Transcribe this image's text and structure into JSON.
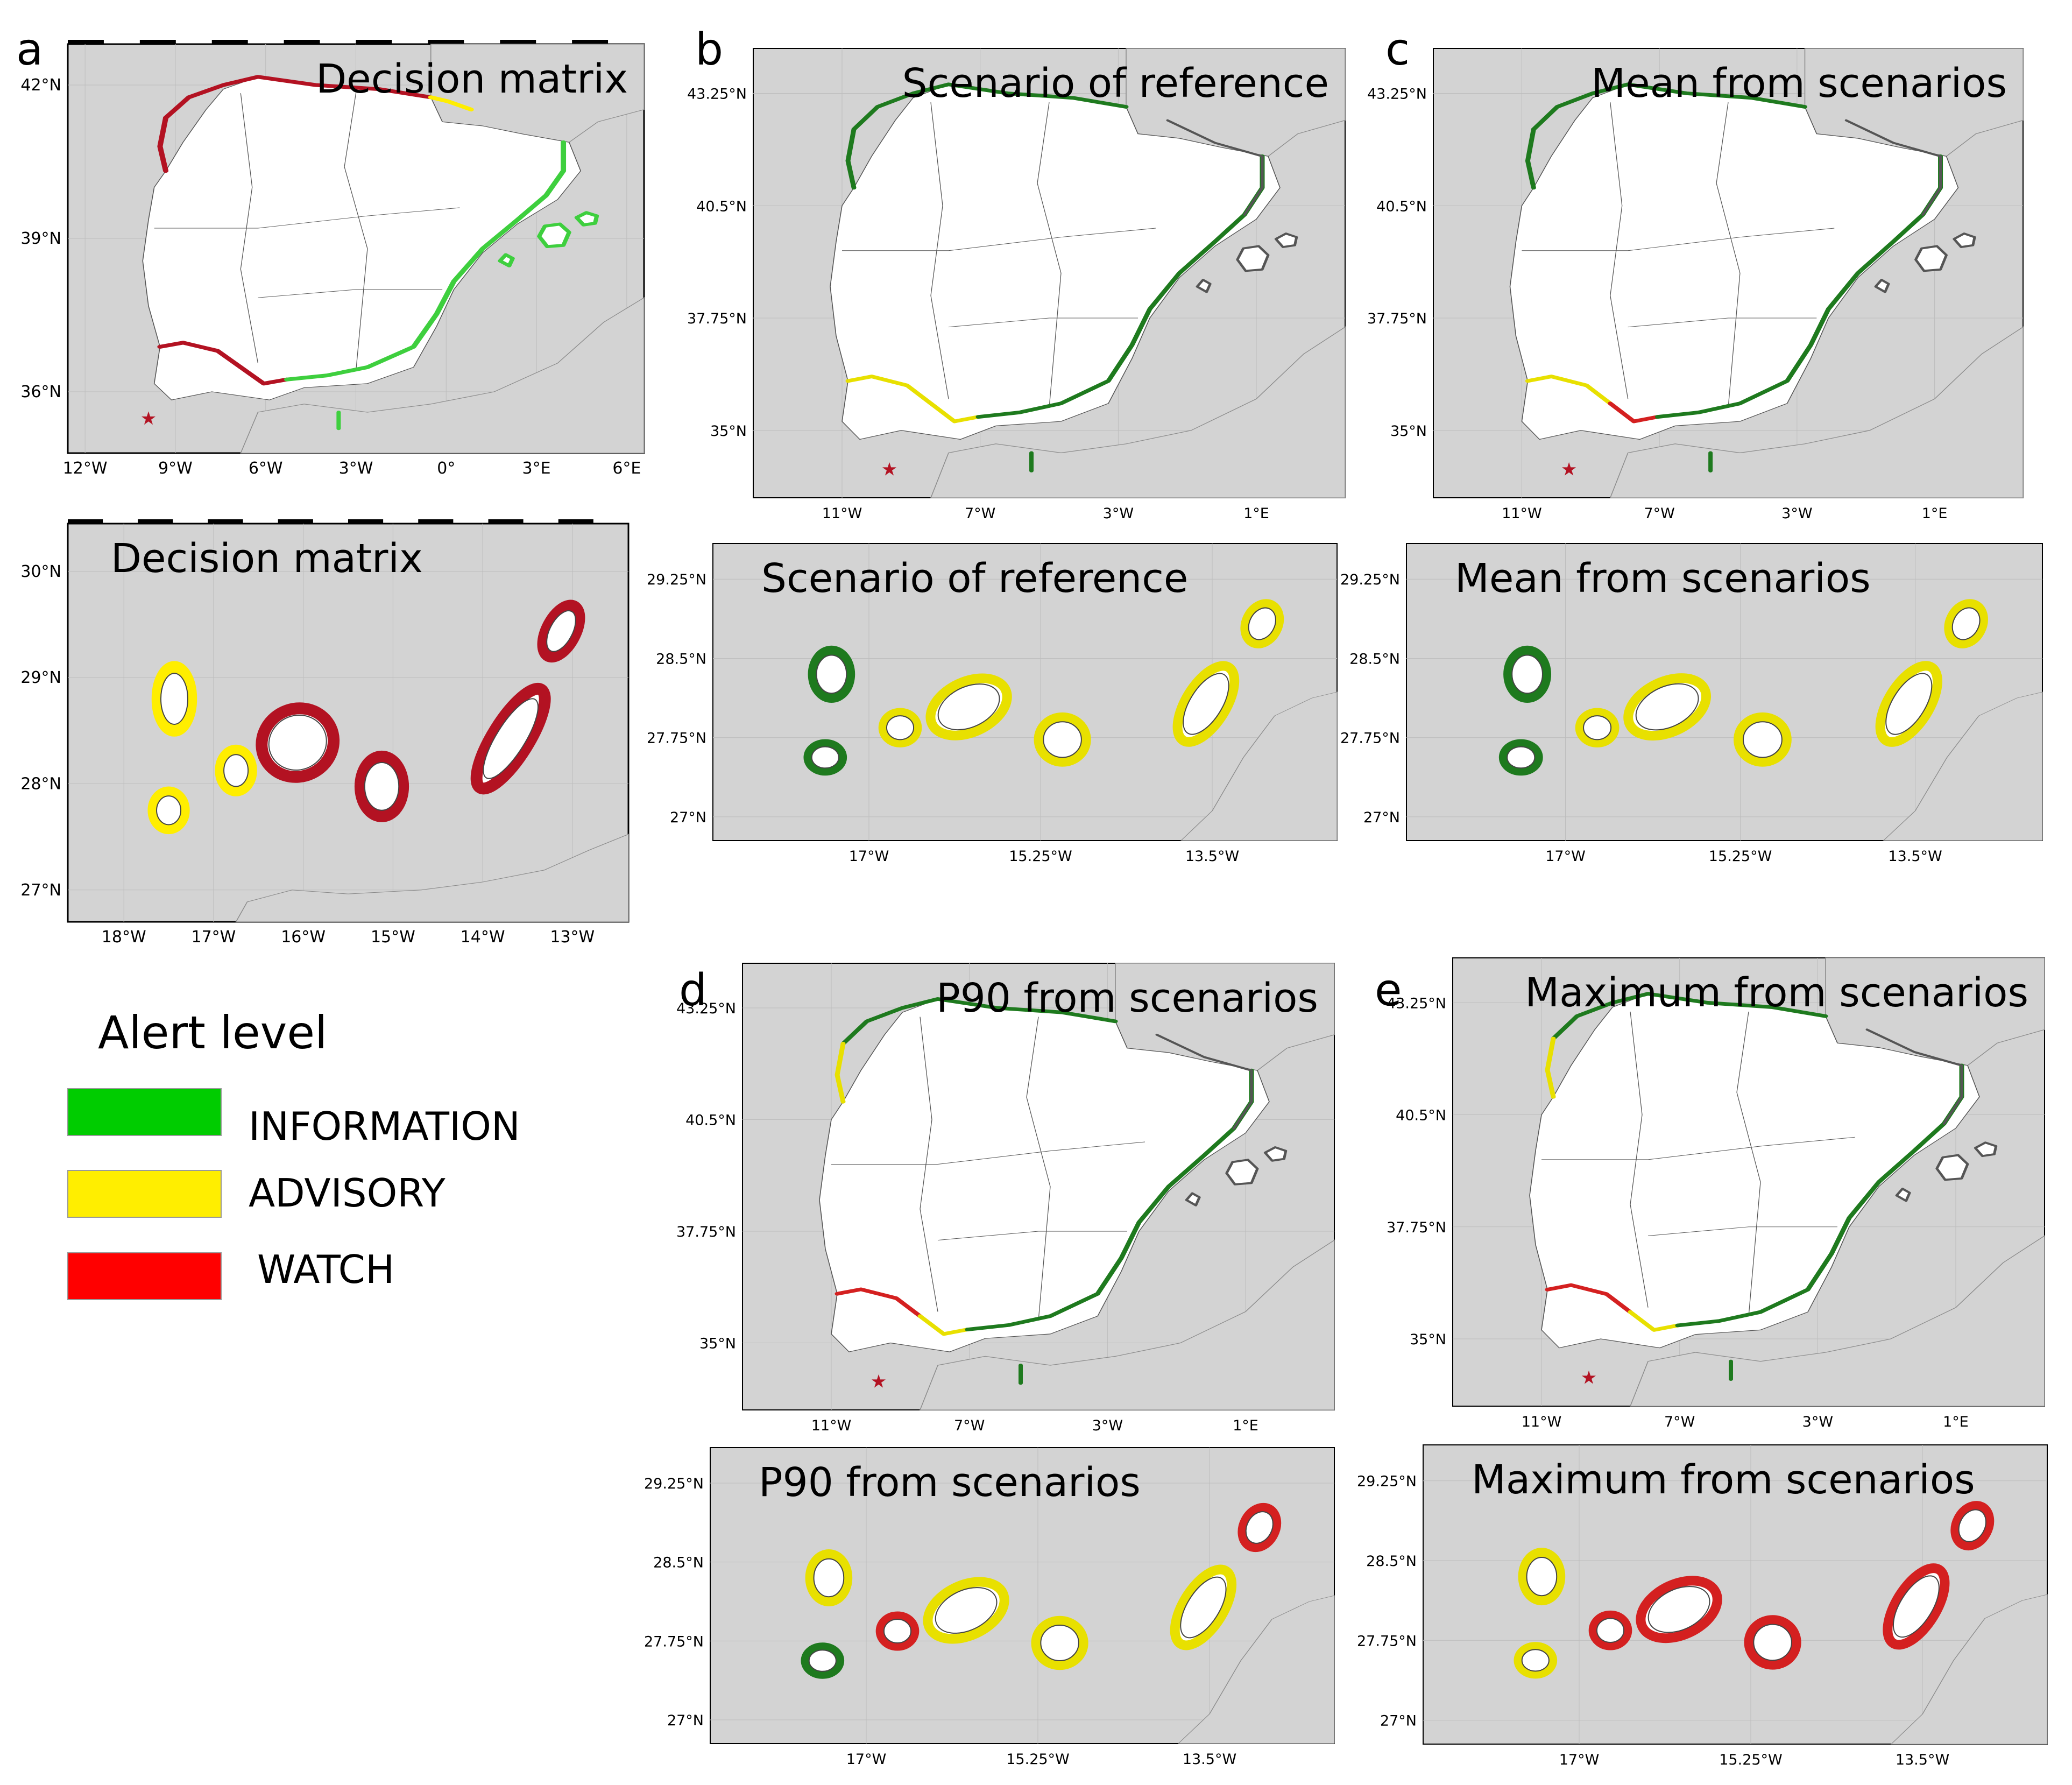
{
  "figure": {
    "panels": [
      {
        "letter": "a",
        "maps": [
          {
            "kind": "peninsula",
            "title": "Decision matrix",
            "lat_ticks": [
              "42°N",
              "39°N",
              "36°N"
            ],
            "lon_ticks": [
              "12°W",
              "9°W",
              "6°W",
              "3°W",
              "0°",
              "3°E",
              "6°E"
            ],
            "epicenter_symbol": "★",
            "coasts": {
              "north": "WATCH",
              "northeast": "ADVISORY",
              "galicia": "WATCH",
              "gulf_cadiz": "WATCH",
              "strait": "WATCH",
              "mediterranean": "INFORMATION",
              "balearic": "INFORMATION",
              "ceuta_melilla": "INFORMATION"
            }
          },
          {
            "kind": "canary",
            "title": "Decision matrix",
            "lat_ticks": [
              "30°N",
              "29°N",
              "28°N",
              "27°N"
            ],
            "lon_ticks": [
              "18°W",
              "17°W",
              "16°W",
              "15°W",
              "14°W",
              "13°W"
            ],
            "islands": {
              "La Palma": "ADVISORY",
              "El Hierro": "ADVISORY",
              "La Gomera": "ADVISORY",
              "Tenerife": "WATCH",
              "Gran Canaria": "WATCH",
              "Fuerteventura": "WATCH",
              "Lanzarote": "WATCH"
            }
          }
        ]
      },
      {
        "letter": "b",
        "maps": [
          {
            "kind": "peninsula",
            "title": "Scenario of reference",
            "lat_ticks": [
              "43.25°N",
              "40.5°N",
              "37.75°N",
              "35°N"
            ],
            "lon_ticks": [
              "11°W",
              "7°W",
              "3°W",
              "1°E"
            ],
            "epicenter_symbol": "★",
            "coasts": {
              "north": "INFORMATION",
              "galicia": "INFORMATION",
              "gulf_cadiz": "ADVISORY",
              "strait": "ADVISORY",
              "mediterranean": "INFORMATION",
              "ceuta_melilla": "INFORMATION"
            }
          },
          {
            "kind": "canary",
            "title": "Scenario of reference",
            "lat_ticks": [
              "29.25°N",
              "28.5°N",
              "27.75°N",
              "27°N"
            ],
            "lon_ticks": [
              "17°W",
              "15.25°W",
              "13.5°W"
            ],
            "islands": {
              "La Palma": "INFORMATION",
              "El Hierro": "INFORMATION",
              "La Gomera": "ADVISORY",
              "Tenerife": "ADVISORY",
              "Gran Canaria": "ADVISORY",
              "Fuerteventura": "ADVISORY",
              "Lanzarote": "ADVISORY"
            }
          }
        ]
      },
      {
        "letter": "c",
        "maps": [
          {
            "kind": "peninsula",
            "title": "Mean from scenarios",
            "lat_ticks": [
              "43.25°N",
              "40.5°N",
              "37.75°N",
              "35°N"
            ],
            "lon_ticks": [
              "11°W",
              "7°W",
              "3°W",
              "1°E"
            ],
            "epicenter_symbol": "★",
            "coasts": {
              "north": "INFORMATION",
              "galicia": "INFORMATION",
              "gulf_cadiz": "ADVISORY",
              "strait": "WATCH",
              "mediterranean": "INFORMATION",
              "ceuta_melilla": "INFORMATION"
            }
          },
          {
            "kind": "canary",
            "title": "Mean from scenarios",
            "lat_ticks": [
              "29.25°N",
              "28.5°N",
              "27.75°N",
              "27°N"
            ],
            "lon_ticks": [
              "17°W",
              "15.25°W",
              "13.5°W"
            ],
            "islands": {
              "La Palma": "INFORMATION",
              "El Hierro": "INFORMATION",
              "La Gomera": "ADVISORY",
              "Tenerife": "ADVISORY",
              "Gran Canaria": "ADVISORY",
              "Fuerteventura": "ADVISORY",
              "Lanzarote": "ADVISORY"
            }
          }
        ]
      },
      {
        "letter": "d",
        "maps": [
          {
            "kind": "peninsula",
            "title": "P90 from scenarios",
            "lat_ticks": [
              "43.25°N",
              "40.5°N",
              "37.75°N",
              "35°N"
            ],
            "lon_ticks": [
              "11°W",
              "7°W",
              "3°W",
              "1°E"
            ],
            "epicenter_symbol": "★",
            "coasts": {
              "north": "INFORMATION",
              "galicia": "ADVISORY",
              "gulf_cadiz": "WATCH",
              "strait": "ADVISORY",
              "mediterranean": "INFORMATION",
              "ceuta_melilla": "INFORMATION"
            }
          },
          {
            "kind": "canary",
            "title": "P90 from scenarios",
            "lat_ticks": [
              "29.25°N",
              "28.5°N",
              "27.75°N",
              "27°N"
            ],
            "lon_ticks": [
              "17°W",
              "15.25°W",
              "13.5°W"
            ],
            "islands": {
              "La Palma": "ADVISORY",
              "El Hierro": "INFORMATION",
              "La Gomera": "WATCH",
              "Tenerife": "ADVISORY",
              "Gran Canaria": "ADVISORY",
              "Fuerteventura": "ADVISORY",
              "Lanzarote": "WATCH"
            }
          }
        ]
      },
      {
        "letter": "e",
        "maps": [
          {
            "kind": "peninsula",
            "title": "Maximum from scenarios",
            "lat_ticks": [
              "43.25°N",
              "40.5°N",
              "37.75°N",
              "35°N"
            ],
            "lon_ticks": [
              "11°W",
              "7°W",
              "3°W",
              "1°E"
            ],
            "epicenter_symbol": "★",
            "coasts": {
              "north": "INFORMATION",
              "galicia": "ADVISORY",
              "gulf_cadiz": "WATCH",
              "strait": "ADVISORY",
              "mediterranean": "INFORMATION",
              "ceuta_melilla": "INFORMATION"
            }
          },
          {
            "kind": "canary",
            "title": "Maximum from scenarios",
            "lat_ticks": [
              "29.25°N",
              "28.5°N",
              "27.75°N",
              "27°N"
            ],
            "lon_ticks": [
              "17°W",
              "15.25°W",
              "13.5°W"
            ],
            "islands": {
              "La Palma": "ADVISORY",
              "El Hierro": "ADVISORY",
              "La Gomera": "WATCH",
              "Tenerife": "WATCH",
              "Gran Canaria": "WATCH",
              "Fuerteventura": "WATCH",
              "Lanzarote": "WATCH"
            }
          }
        ]
      }
    ]
  },
  "legend": {
    "title": "Alert level",
    "items": [
      {
        "label": "INFORMATION",
        "color": "#00cc00"
      },
      {
        "label": "ADVISORY",
        "color": "#ffee00"
      },
      {
        "label": "WATCH",
        "color": "#ff0000"
      }
    ]
  },
  "style": {
    "sea_color": "#d3d3d3",
    "land_color": "#ffffff",
    "level_colors": {
      "INFORMATION": "#1e7a1e",
      "ADVISORY": "#e8e000",
      "WATCH": "#d42020"
    },
    "decision_colors": {
      "INFORMATION": "#3ecf3e",
      "ADVISORY": "#ffee00",
      "WATCH": "#b31222"
    }
  }
}
